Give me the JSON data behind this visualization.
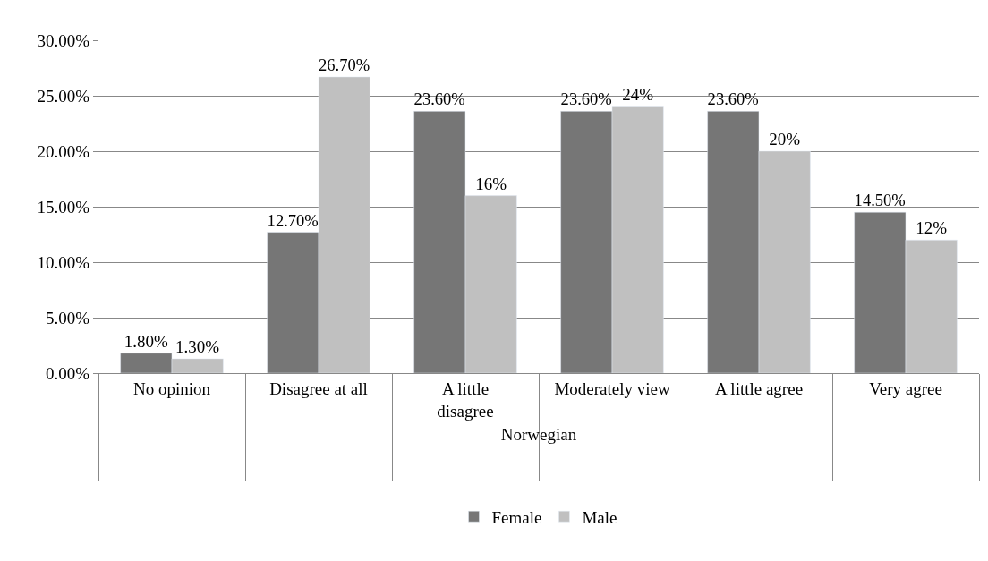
{
  "chart_data": {
    "type": "bar",
    "xlabel": "Norwegian",
    "categories": [
      "No opinion",
      "Disagree at all",
      "A little disagree",
      "Moderately view",
      "A little agree",
      "Very agree"
    ],
    "series": [
      {
        "name": "Female",
        "color": "#767676",
        "values": [
          1.8,
          12.7,
          23.6,
          23.6,
          23.6,
          14.5
        ],
        "value_labels": [
          "1.80%",
          "12.70%",
          "23.60%",
          "23.60%",
          "23.60%",
          "14.50%"
        ]
      },
      {
        "name": "Male",
        "color": "#c0c0c0",
        "values": [
          1.3,
          26.7,
          16,
          24,
          20,
          12
        ],
        "value_labels": [
          "1.30%",
          "26.70%",
          "16%",
          "24%",
          "20%",
          "12%"
        ]
      }
    ],
    "ylim": [
      0,
      30
    ],
    "yticks": [
      {
        "value": 0,
        "label": "0.00%"
      },
      {
        "value": 5,
        "label": "5.00%"
      },
      {
        "value": 10,
        "label": "10.00%"
      },
      {
        "value": 15,
        "label": "15.00%"
      },
      {
        "value": 20,
        "label": "20.00%"
      },
      {
        "value": 25,
        "label": "25.00%"
      },
      {
        "value": 30,
        "label": "30.00%"
      }
    ],
    "grid": "y",
    "legend": "bottom"
  }
}
